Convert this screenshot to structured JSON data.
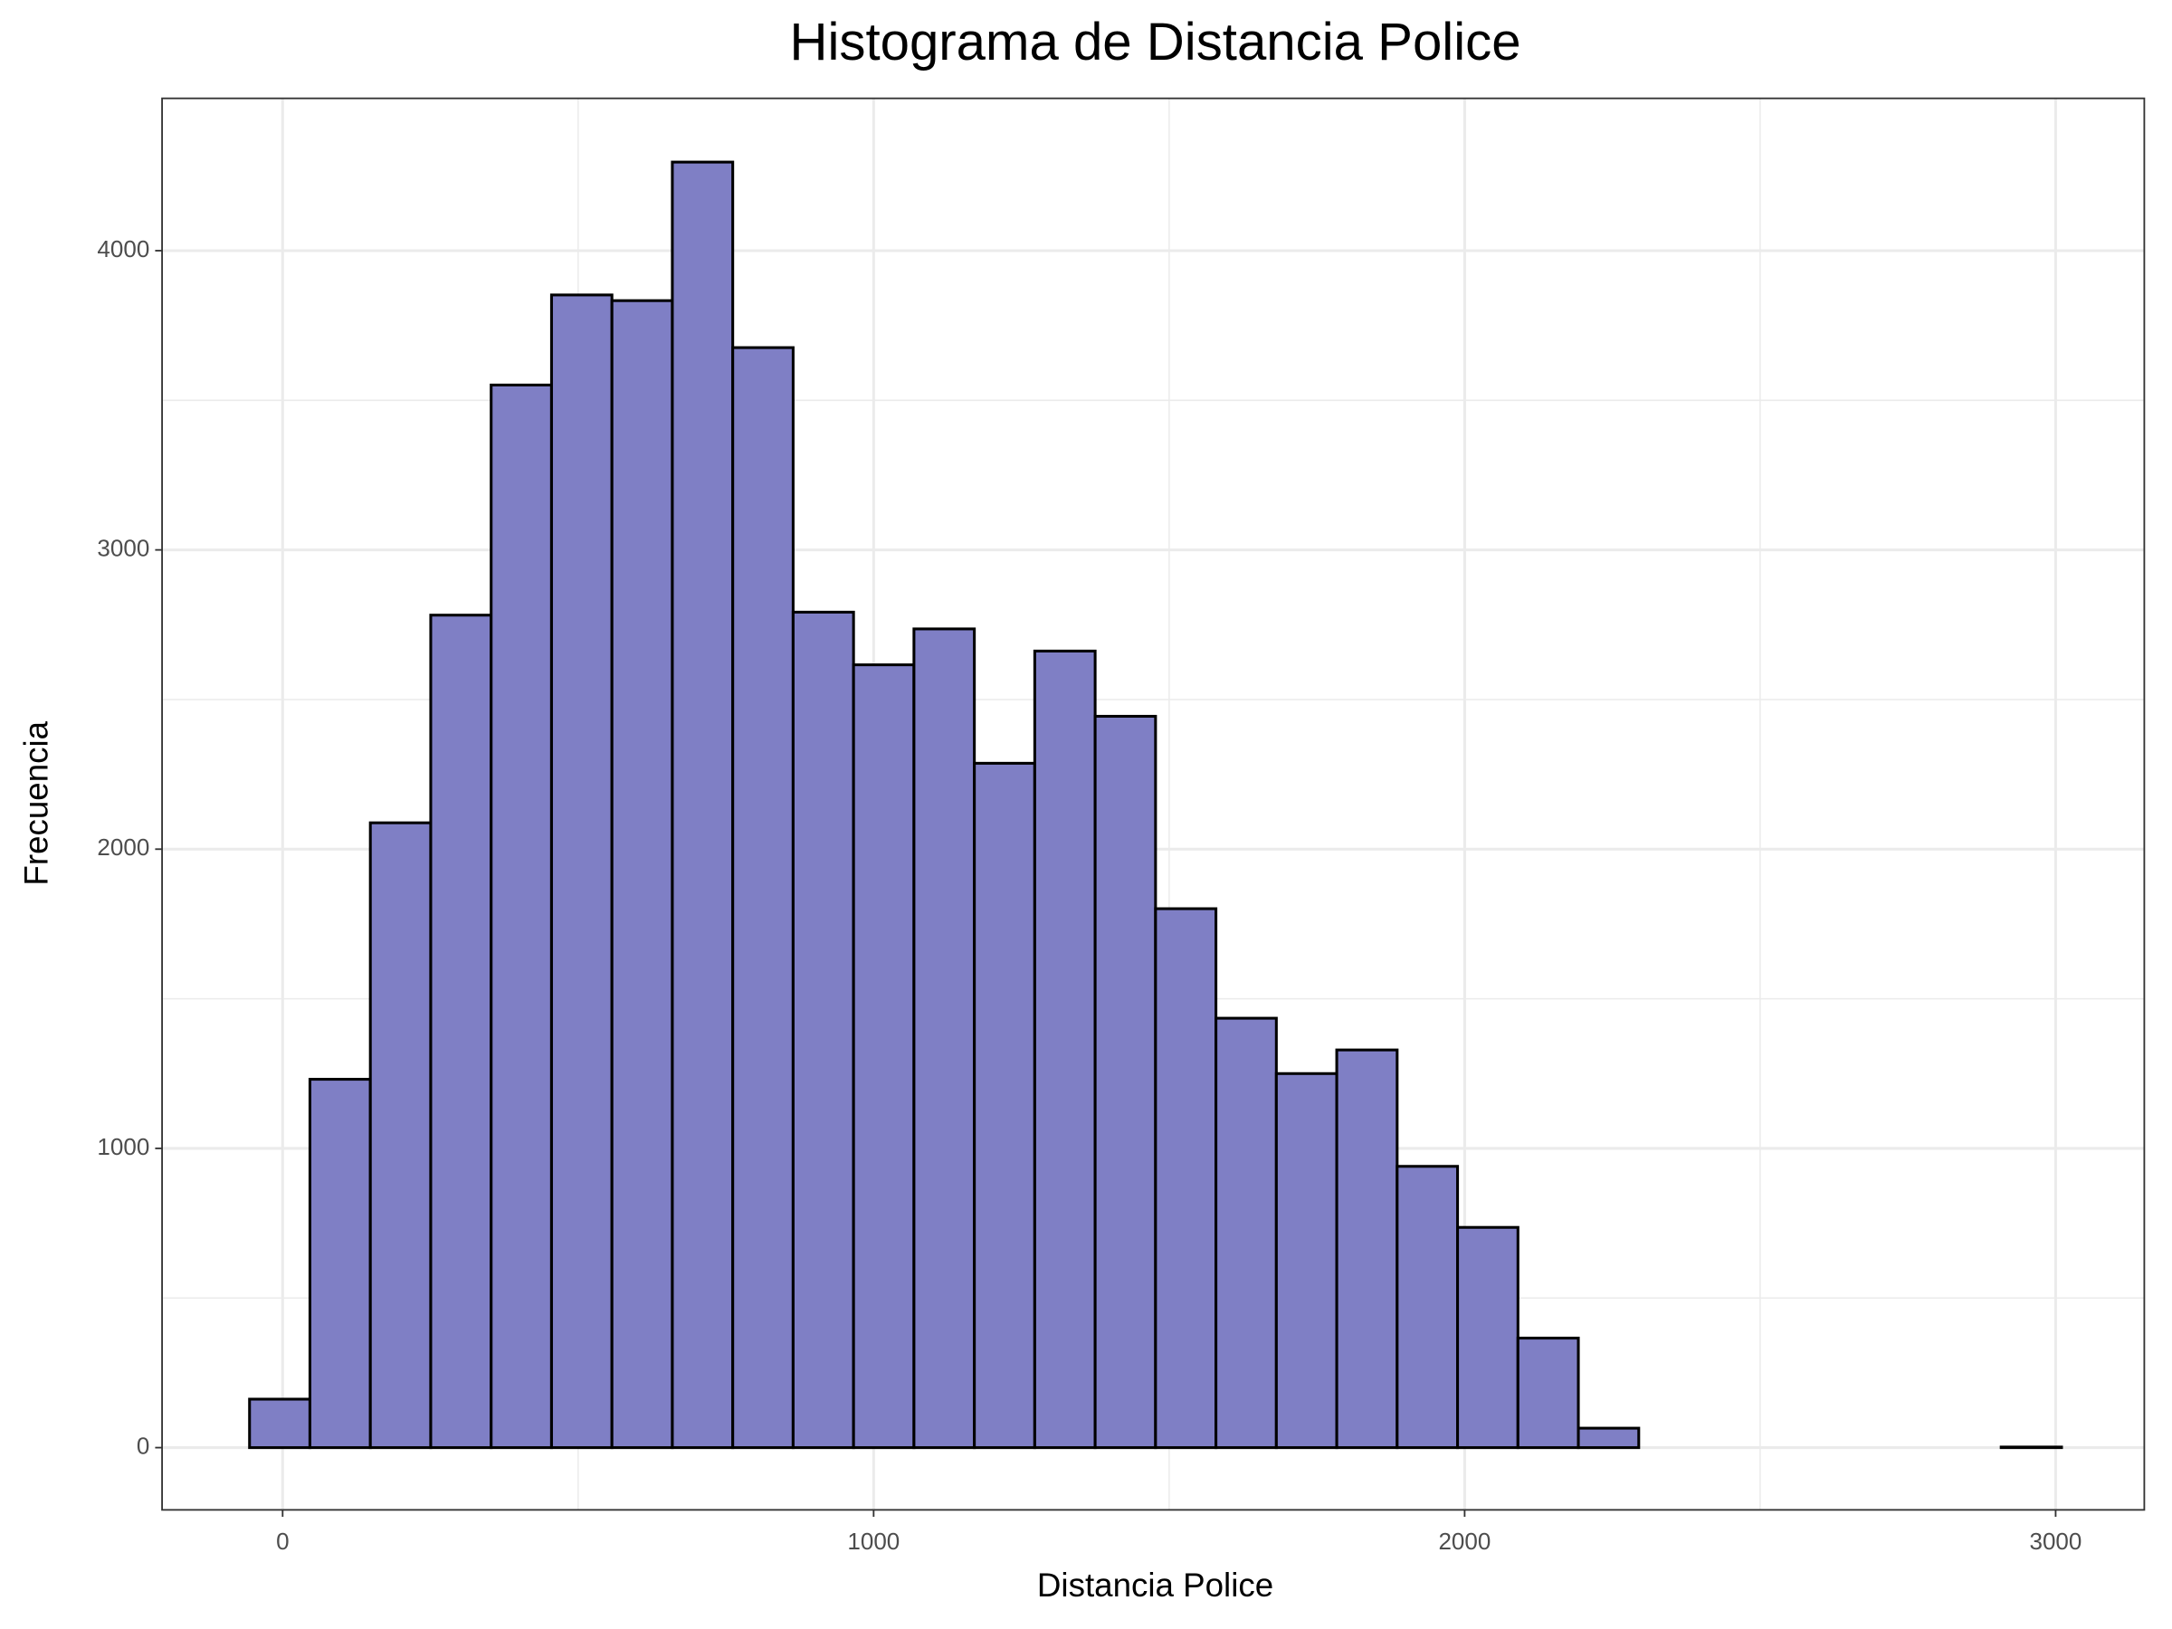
{
  "chart_data": {
    "type": "histogram",
    "title": "Histograma de Distancia Police",
    "x_label": "Distancia Police",
    "y_label": "Frecuencia",
    "bins": [
      -56,
      46.2,
      148.4,
      250.6,
      352.8,
      455,
      557.2,
      659.4,
      761.6,
      863.8,
      966,
      1068.2,
      1170.4,
      1272.6,
      1374.8,
      1477,
      1579.2,
      1681.4,
      1783.6,
      1885.8,
      1988,
      2090.2,
      2192.4,
      2294.6,
      2396.8,
      2499,
      2601.2,
      2703.4,
      2805.6,
      2907.8,
      3010
    ],
    "values": [
      162,
      1231,
      2088,
      2782,
      3551,
      3852,
      3833,
      4296,
      3676,
      2792,
      2616,
      2736,
      2287,
      2662,
      2444,
      1801,
      1435,
      1250,
      1329,
      940,
      736,
      366,
      65,
      0,
      0,
      0,
      0,
      0,
      0,
      2
    ],
    "color": "#7f7fc5",
    "edge_color": "#000000",
    "xlim": [
      -204,
      3150
    ],
    "ylim": [
      -208,
      4509
    ],
    "xticks": [
      0,
      1000,
      2000,
      3000
    ],
    "yticks": [
      0,
      1000,
      2000,
      3000,
      4000
    ],
    "minor_xticks": [
      500,
      1500,
      2500
    ],
    "minor_yticks": [
      500,
      1500,
      2500,
      3500
    ],
    "grid": true
  }
}
